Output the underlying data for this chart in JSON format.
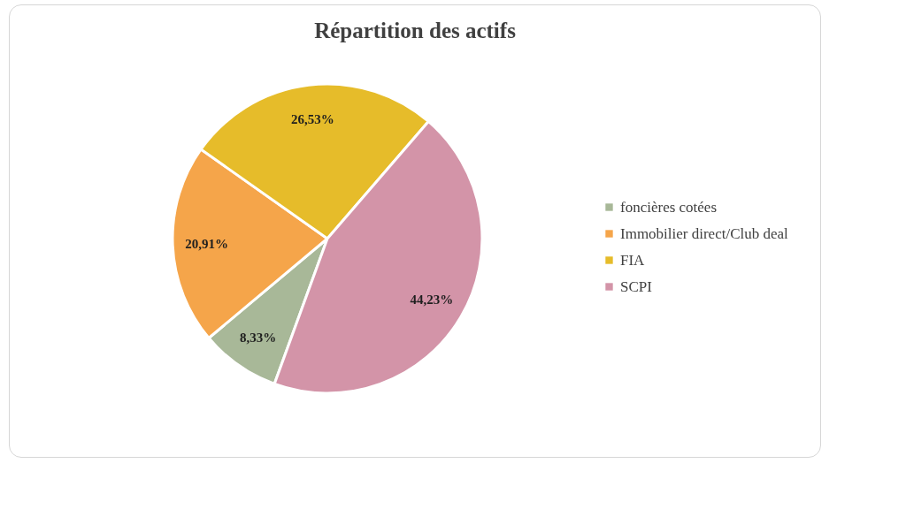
{
  "chart_data": {
    "type": "pie",
    "title": "Répartition des actifs",
    "categories": [
      "foncières cotées",
      "Immobilier direct/Club deal",
      "FIA",
      "SCPI"
    ],
    "values": [
      8.33,
      20.91,
      26.53,
      44.23
    ],
    "colors": [
      "#a8b898",
      "#f5a54a",
      "#e6bc2a",
      "#d394a8"
    ],
    "value_labels": [
      "8,33%",
      "20,91%",
      "26,53%",
      "44,23%"
    ],
    "legend": "right"
  }
}
